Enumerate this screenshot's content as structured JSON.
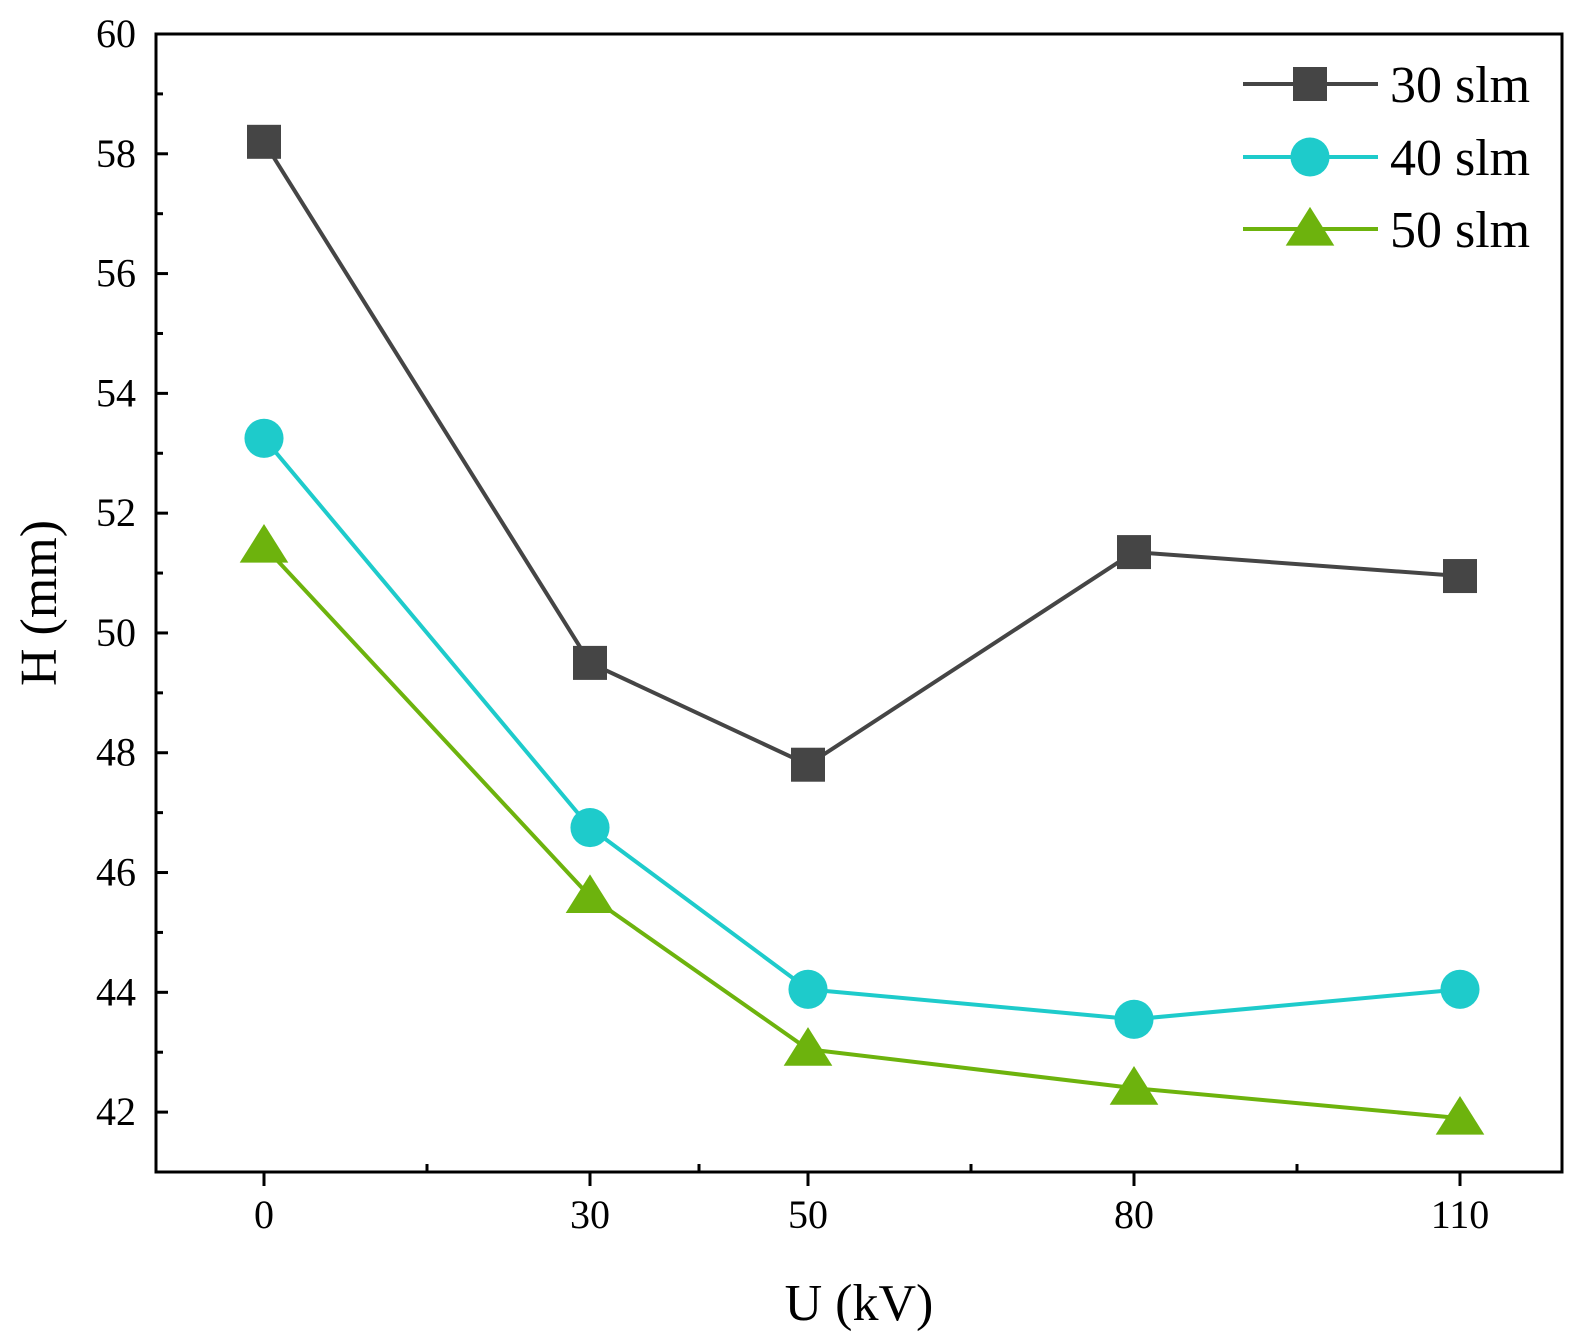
{
  "chart_data": {
    "type": "line",
    "title": "",
    "xlabel": "U (kV)",
    "ylabel": "H (mm)",
    "x": [
      0,
      30,
      50,
      80,
      110
    ],
    "x_tick_labels": [
      "0",
      "30",
      "50",
      "80",
      "110"
    ],
    "x_scale": "categorical-uniform",
    "y_ticks": [
      42,
      44,
      46,
      48,
      50,
      52,
      54,
      56,
      58,
      60
    ],
    "y_tick_labels": [
      "42",
      "44",
      "46",
      "48",
      "50",
      "52",
      "54",
      "56",
      "58",
      "60"
    ],
    "ylim": [
      41,
      60
    ],
    "grid": false,
    "legend_position": "top-right",
    "series": [
      {
        "name": "30 slm",
        "color": "#454545",
        "marker": "square",
        "values": [
          58.2,
          49.5,
          47.8,
          51.35,
          50.95
        ]
      },
      {
        "name": "40 slm",
        "color": "#1ecbcb",
        "marker": "circle",
        "values": [
          53.25,
          46.75,
          44.05,
          43.55,
          44.05
        ]
      },
      {
        "name": "50 slm",
        "color": "#6db30d",
        "marker": "triangle",
        "values": [
          51.45,
          45.6,
          43.05,
          42.4,
          41.9
        ]
      }
    ]
  }
}
